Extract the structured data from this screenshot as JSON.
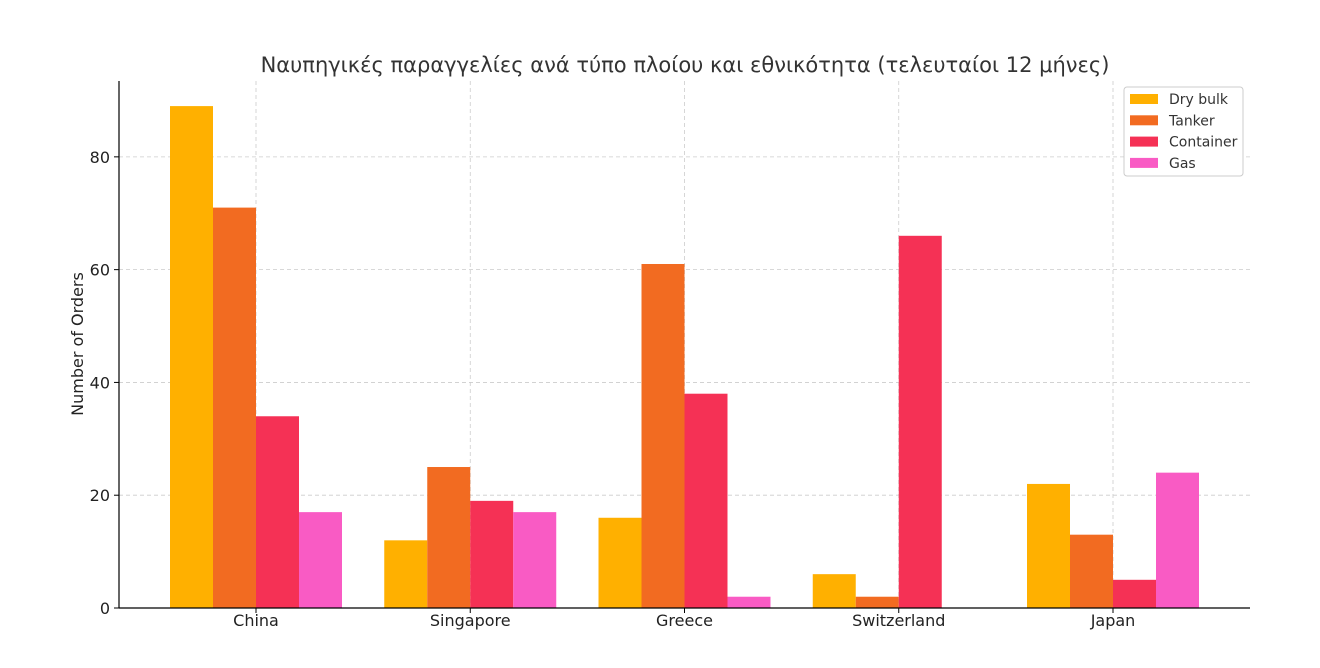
{
  "chart_data": {
    "type": "bar",
    "title": "Ναυπηγικές παραγγελίες ανά τύπο πλοίου και εθνικότητα (τελευταίοι 12 μήνες)",
    "xlabel": "",
    "ylabel": "Number of Orders",
    "categories": [
      "China",
      "Singapore",
      "Greece",
      "Switzerland",
      "Japan"
    ],
    "series": [
      {
        "name": "Dry bulk",
        "color": "#FFB000",
        "values": [
          89,
          12,
          16,
          6,
          22
        ]
      },
      {
        "name": "Tanker",
        "color": "#F26B21",
        "values": [
          71,
          25,
          61,
          2,
          13
        ]
      },
      {
        "name": "Container",
        "color": "#F53155",
        "values": [
          34,
          19,
          38,
          66,
          5
        ]
      },
      {
        "name": "Gas",
        "color": "#F95BC4",
        "values": [
          17,
          17,
          2,
          0,
          24
        ]
      }
    ],
    "ylim": [
      0,
      93.45
    ],
    "yticks": [
      0,
      20,
      40,
      60,
      80
    ],
    "grid": true,
    "legend_position": "top-right"
  }
}
